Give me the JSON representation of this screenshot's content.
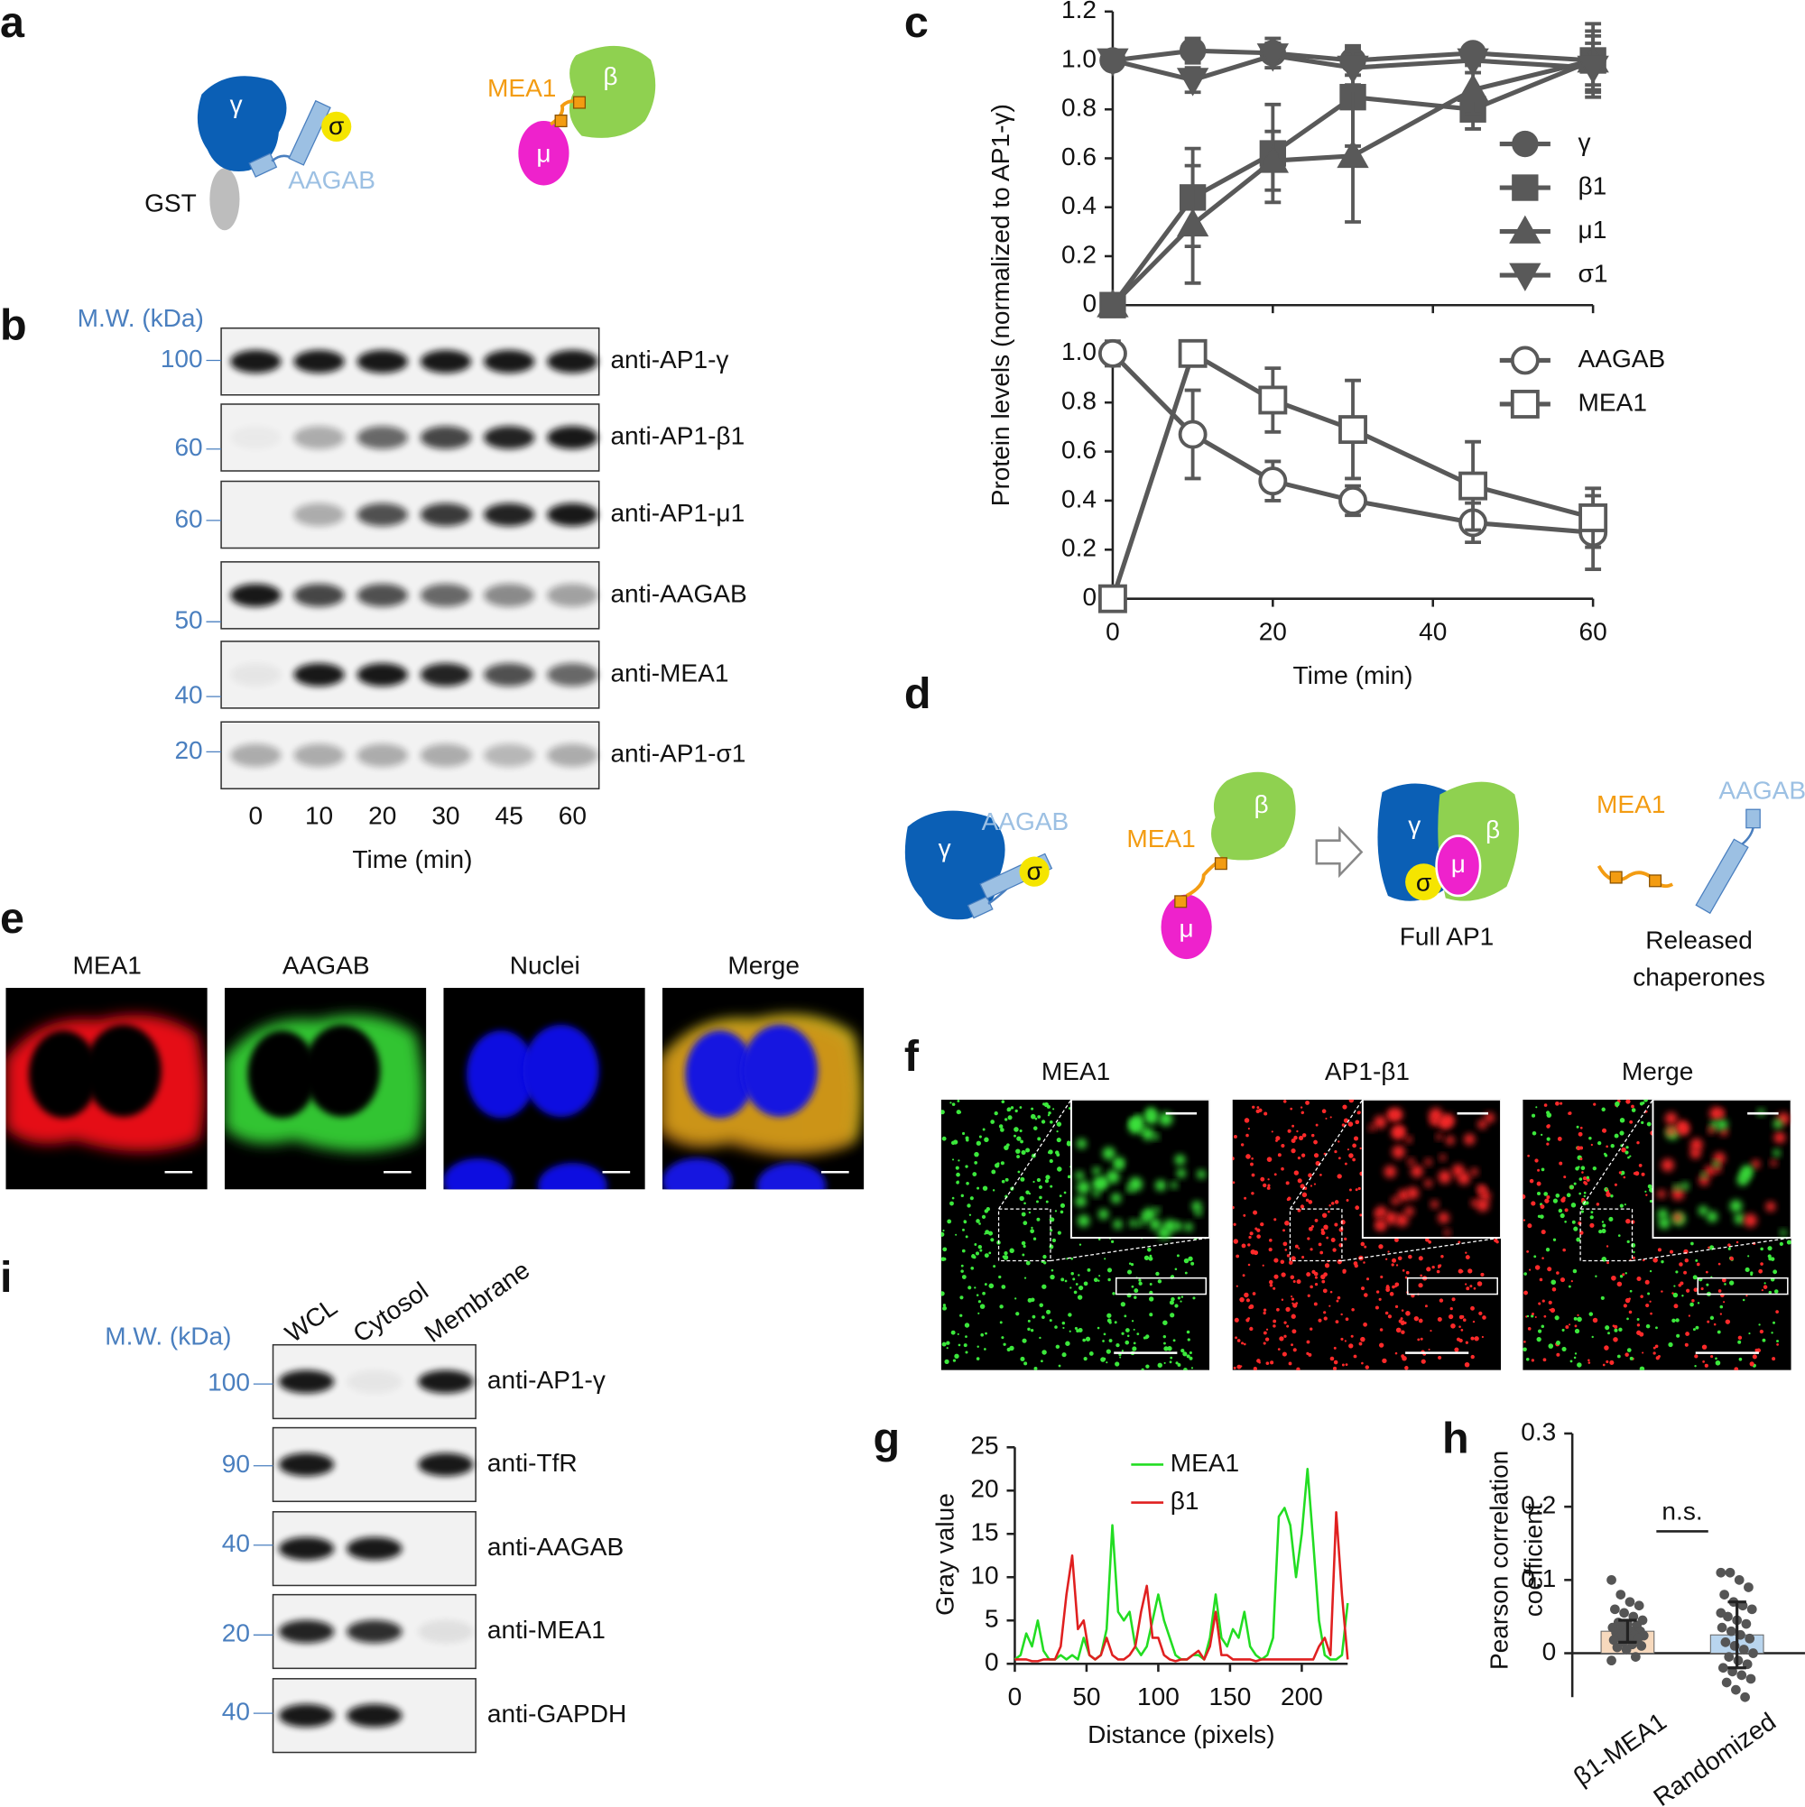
{
  "panel_labels": [
    "a",
    "b",
    "c",
    "d",
    "e",
    "f",
    "g",
    "h",
    "i"
  ],
  "diagram_a": {
    "gamma": "γ",
    "sigma": "σ",
    "gst": "GST",
    "aagab": "AAGAB",
    "mea1": "MEA1",
    "beta": "β",
    "mu": "μ"
  },
  "blot_b": {
    "mw_title": "M.W. (kDa)",
    "rows": [
      {
        "mw": 100,
        "antibody": "anti-AP1-γ"
      },
      {
        "mw": 60,
        "antibody": "anti-AP1-β1"
      },
      {
        "mw": 60,
        "antibody": "anti-AP1-μ1"
      },
      {
        "mw": 50,
        "antibody": "anti-AAGAB"
      },
      {
        "mw": 40,
        "antibody": "anti-MEA1"
      },
      {
        "mw": 20,
        "antibody": "anti-AP1-σ1"
      }
    ],
    "lanes": [
      0,
      10,
      20,
      30,
      45,
      60
    ],
    "xlabel": "Time (min)"
  },
  "diagram_d": {
    "aagab": "AAGAB",
    "gamma": "γ",
    "sigma": "σ",
    "mea1": "MEA1",
    "beta": "β",
    "mu": "μ",
    "complex_gamma": "γ",
    "complex_beta": "β",
    "complex_sigma": "σ",
    "complex_mu": "μ",
    "complex_label": "Full AP1",
    "released_mea1": "MEA1",
    "released_aagab": "AAGAB",
    "released_label": [
      "Released",
      "chaperones"
    ]
  },
  "images_e": {
    "titles": [
      "MEA1",
      "AAGAB",
      "Nuclei",
      "Merge"
    ]
  },
  "images_f": {
    "titles": [
      "MEA1",
      "AP1-β1",
      "Merge"
    ]
  },
  "blot_i": {
    "mw_title": "M.W. (kDa)",
    "lanes": [
      "WCL",
      "Cytosol",
      "Membrane"
    ],
    "rows": [
      {
        "mw": 100,
        "antibody": "anti-AP1-γ"
      },
      {
        "mw": 90,
        "antibody": "anti-TfR"
      },
      {
        "mw": 40,
        "antibody": "anti-AAGAB"
      },
      {
        "mw": 20,
        "antibody": "anti-MEA1"
      },
      {
        "mw": 40,
        "antibody": "anti-GAPDH"
      }
    ]
  },
  "chart_data": [
    {
      "type": "line",
      "ylabel": "Protein levels (normalized to AP1-γ)",
      "x": [
        0,
        10,
        20,
        30,
        45,
        60
      ],
      "xlim": [
        0,
        60
      ],
      "ylim": [
        0,
        1.2
      ],
      "yticks": [
        0,
        0.2,
        0.4,
        0.6,
        0.8,
        {
          "value": 1,
          "label": "1.0"
        },
        1.2
      ],
      "legend": "right",
      "series": [
        {
          "name": "γ",
          "color": "#595959",
          "marker": "circle",
          "values": [
            1.0,
            1.04,
            1.03,
            1.0,
            1.03,
            1.0
          ],
          "errors": [
            0.03,
            0.05,
            0.06,
            0.06,
            0.03,
            0.12
          ]
        },
        {
          "name": "β1",
          "color": "#595959",
          "marker": "square",
          "values": [
            0,
            0.44,
            0.62,
            0.85,
            0.8,
            1.0
          ],
          "errors": [
            0,
            0.2,
            0.2,
            0.2,
            0.08,
            0.1
          ]
        },
        {
          "name": "μ1",
          "color": "#595959",
          "marker": "triangle-up",
          "values": [
            0,
            0.33,
            0.59,
            0.61,
            0.88,
            1.0
          ],
          "errors": [
            0,
            0.24,
            0.12,
            0.27,
            0.1,
            0.15
          ]
        },
        {
          "name": "σ1",
          "color": "#595959",
          "marker": "triangle-down",
          "values": [
            1.0,
            0.92,
            1.02,
            0.97,
            1.0,
            0.97
          ],
          "errors": [
            0.02,
            0.05,
            0.05,
            0.07,
            0.05,
            0.1
          ]
        }
      ]
    },
    {
      "type": "line",
      "xlabel": "Time (min)",
      "x": [
        0,
        10,
        20,
        30,
        45,
        60
      ],
      "xlim": [
        0,
        60
      ],
      "xticks": [
        0,
        20,
        40,
        60
      ],
      "ylim": [
        0,
        1
      ],
      "yticks": [
        0,
        0.2,
        0.4,
        0.6,
        0.8,
        {
          "value": 1,
          "label": "1.0"
        }
      ],
      "legend": "right",
      "series": [
        {
          "name": "AAGAB",
          "color": "#595959",
          "marker": "open-circle",
          "values": [
            1.0,
            0.67,
            0.48,
            0.4,
            0.31,
            0.27
          ],
          "errors": [
            0.05,
            0.18,
            0.08,
            0.06,
            0.08,
            0.15
          ]
        },
        {
          "name": "MEA1",
          "color": "#595959",
          "marker": "open-square",
          "values": [
            0,
            1.0,
            0.81,
            0.69,
            0.46,
            0.33
          ],
          "errors": [
            0,
            0.05,
            0.13,
            0.2,
            0.18,
            0.12
          ]
        }
      ]
    },
    {
      "type": "line",
      "xlabel": "Distance (pixels)",
      "ylabel": "Gray value",
      "x": [
        0,
        4,
        8,
        12,
        16,
        20,
        24,
        28,
        32,
        36,
        40,
        44,
        48,
        52,
        56,
        60,
        64,
        68,
        72,
        76,
        80,
        84,
        88,
        92,
        96,
        100,
        104,
        108,
        112,
        116,
        120,
        124,
        128,
        132,
        136,
        140,
        144,
        148,
        152,
        156,
        160,
        164,
        168,
        172,
        176,
        180,
        184,
        188,
        192,
        196,
        200,
        204,
        208,
        212,
        216,
        220,
        224,
        228,
        232
      ],
      "xlim": [
        0,
        232
      ],
      "xticks": [
        0,
        50,
        100,
        150,
        200
      ],
      "ylim": [
        0,
        25
      ],
      "yticks": [
        0,
        5,
        10,
        15,
        20,
        25
      ],
      "legend": "top",
      "series": [
        {
          "name": "MEA1",
          "color": "#22dd22",
          "values": [
            0.5,
            1,
            3.5,
            2,
            5,
            1.5,
            0.5,
            0.5,
            1,
            0.5,
            1,
            0.5,
            3,
            1,
            0.5,
            1,
            4,
            16,
            6,
            5,
            6,
            2,
            1,
            2,
            5,
            8,
            5,
            3,
            1,
            0.5,
            0.5,
            1,
            1,
            0.5,
            3,
            8,
            3,
            2,
            4,
            3,
            6,
            2,
            1,
            0.5,
            1,
            3,
            17,
            18,
            16,
            10,
            15,
            22.5,
            14,
            5,
            1,
            0.5,
            0.5,
            1,
            7
          ]
        },
        {
          "name": "β1",
          "color": "#e02020",
          "values": [
            0.5,
            0.5,
            0.5,
            0.3,
            0.3,
            0.5,
            0.5,
            0.5,
            2,
            8,
            12.5,
            4,
            5,
            1,
            0.5,
            1,
            3,
            1,
            0.5,
            0.5,
            1,
            2,
            6,
            9,
            3,
            3,
            1,
            0.5,
            0.3,
            0.5,
            0.5,
            1,
            1.5,
            0.5,
            2,
            6,
            1,
            1,
            0.5,
            0.5,
            0.5,
            0.5,
            0.3,
            0.5,
            0.5,
            0.5,
            0.5,
            0.5,
            0.5,
            0.5,
            0.5,
            0.5,
            0.5,
            2,
            3,
            1,
            17.5,
            8,
            0.5
          ]
        }
      ]
    },
    {
      "type": "bar",
      "ylabel": [
        "Pearson correlation",
        "coefficient"
      ],
      "categories": [
        "β1-MEA1",
        "Randomized"
      ],
      "values": [
        0.03,
        0.025
      ],
      "errors": [
        0.015,
        0.045
      ],
      "colors": [
        "#f7d9bd",
        "#b9d5ee"
      ],
      "points": [
        [
          0.1,
          0.08,
          0.07,
          0.065,
          0.06,
          0.055,
          0.05,
          0.045,
          0.042,
          0.04,
          0.038,
          0.035,
          0.033,
          0.03,
          0.03,
          0.028,
          0.027,
          0.025,
          0.024,
          0.022,
          0.02,
          0.02,
          0.018,
          0.015,
          0.012,
          0.01,
          0.008,
          0.005,
          -0.005,
          -0.01
        ],
        [
          0.11,
          0.11,
          0.1,
          0.09,
          0.08,
          0.07,
          0.065,
          0.06,
          0.05,
          0.045,
          0.04,
          0.035,
          0.03,
          0.025,
          0.02,
          0.015,
          0.01,
          0.005,
          0,
          -0.005,
          -0.01,
          -0.015,
          -0.02,
          -0.025,
          -0.03,
          -0.035,
          -0.04,
          -0.05,
          -0.06,
          0.055
        ]
      ],
      "annotation": "n.s.",
      "ylim": [
        -0.06,
        0.3
      ],
      "yticks": [
        0,
        0.1,
        0.2,
        0.3
      ]
    }
  ]
}
